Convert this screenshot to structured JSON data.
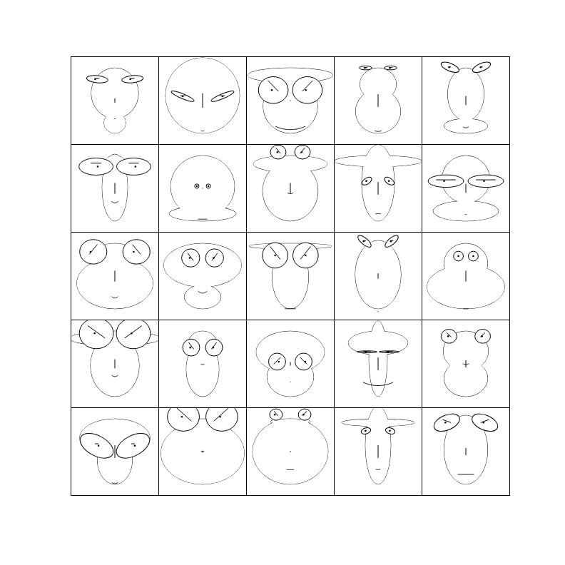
{
  "chart_data": {
    "type": "chernoff_faces",
    "xlim": [
      -1.2,
      1.2
    ],
    "ylim": [
      -1.2,
      1.2
    ],
    "tick_labels": false,
    "faces": [
      [
        0.9,
        0.16,
        -0.49,
        0.65,
        0.3,
        0.12,
        0.5,
        3,
        0.05,
        0.59,
        0.19,
        0.1,
        0.33,
        0.59,
        0.2,
        0.1,
        0,
        0.2
      ],
      [
        0.9,
        0.68,
        0.5,
        0.8,
        1.02,
        0.4,
        0.84,
        5,
        0.1,
        0.12,
        0.21,
        0.4,
        0.2,
        0.68,
        0,
        0.1,
        0,
        0.2
      ],
      [
        0.9,
        0.09,
        0.5,
        1.17,
        0.75,
        0.02,
        0.8,
        0.5,
        0.9,
        0.29,
        0.06,
        0,
        0.9,
        0.82,
        0.1,
        0.15,
        0.2,
        0.35
      ],
      [
        0.9,
        0.3,
        0,
        0.5,
        0.62,
        0.35,
        0.85,
        2,
        0.2,
        0.9,
        0.17,
        0,
        0.3,
        0.35,
        0.1,
        0.1,
        0,
        0.3
      ],
      [
        0.9,
        0.05,
        -0.55,
        0.5,
        0.6,
        0.25,
        0.75,
        4,
        0.2,
        0.92,
        0.17,
        0.4,
        0.4,
        0.53,
        0.1,
        0.05,
        0,
        0.1
      ],
      [
        0.9,
        0.29,
        0.65,
        0.25,
        0.35,
        0.3,
        0.4,
        4,
        0.3,
        0.6,
        0.05,
        0,
        0.5,
        0.94,
        -0.1,
        0.2,
        0,
        0.3
      ],
      [
        0.9,
        0.3,
        -0.8,
        0.88,
        0.92,
        0.02,
        0.85,
        0.01,
        0.25,
        0.06,
        0.1,
        0,
        1,
        0.12,
        0,
        0,
        0,
        0.1
      ],
      [
        0.9,
        0.3,
        0.45,
        1.02,
        0.76,
        0.3,
        0.15,
        4,
        0.2,
        1.0,
        0.12,
        0,
        0.9,
        0.43,
        0.1,
        0.1,
        0.2,
        0.3
      ],
      [
        0.9,
        0.6,
        0.6,
        1.2,
        0.45,
        0.35,
        0.7,
        0.01,
        0.15,
        0.2,
        0.16,
        -0.6,
        0.55,
        0.3,
        0.1,
        0.05,
        0,
        0.1
      ],
      [
        0.9,
        0.05,
        -0.4,
        0.66,
        0.9,
        0.25,
        0.72,
        0.01,
        0.05,
        0.2,
        0.06,
        0,
        0.35,
        0.98,
        0.1,
        0.1,
        0,
        0.55
      ],
      [
        0.9,
        0.3,
        0.2,
        0.6,
        1.05,
        0.3,
        0.6,
        4,
        0.25,
        0.67,
        0.22,
        0,
        0.9,
        0.75,
        0.2,
        0.1,
        -0.2,
        0.3
      ],
      [
        0.9,
        0.05,
        -0.3,
        1.07,
        0.5,
        0.0,
        0.47,
        3,
        0.4,
        0.5,
        0.08,
        0,
        1,
        0.5,
        0.1,
        0.05,
        0.2,
        0.3
      ],
      [
        0.9,
        0.1,
        0.75,
        1.14,
        0.5,
        0.0,
        0.9,
        0.01,
        0.3,
        0.57,
        0.07,
        0,
        1,
        0.7,
        0,
        0.1,
        0.25,
        0.4
      ],
      [
        0.9,
        0.68,
        0.3,
        0.4,
        0.63,
        0.15,
        0.98,
        3,
        0.03,
        0.96,
        0.15,
        0.7,
        0.4,
        0.45,
        0.1,
        0.1,
        0,
        0.2
      ],
      [
        0.9,
        0.5,
        -0.2,
        0.6,
        1.07,
        0.3,
        0.9,
        0.01,
        0.15,
        0.55,
        0.07,
        0,
        1,
        0.27,
        0,
        0,
        0,
        0.1
      ],
      [
        0.9,
        0.3,
        0.5,
        1.25,
        0.67,
        0.25,
        0.35,
        4,
        0.25,
        0.84,
        0.04,
        0,
        0.9,
        0.94,
        0.1,
        0.05,
        0.2,
        0.5
      ],
      [
        0.9,
        0.4,
        0.2,
        0.4,
        0.45,
        0.0,
        0.02,
        3,
        0.1,
        0.45,
        0.08,
        0,
        1,
        0.47,
        0.1,
        0.1,
        0.2,
        0.3
      ],
      [
        0.9,
        0.43,
        -0.25,
        0.94,
        0.64,
        0.1,
        0.5,
        0.01,
        0.02,
        0.06,
        0.13,
        0,
        1,
        0.47,
        -0.2,
        0.05,
        -0.2,
        0.4
      ],
      [
        0.9,
        0.93,
        0.25,
        0.82,
        0.25,
        0.35,
        0.6,
        0.5,
        0.9,
        0.33,
        0.03,
        0,
        0.1,
        0.55,
        0.1,
        0.2,
        0.1,
        0.4
      ],
      [
        0.9,
        0.3,
        -0.2,
        0.62,
        0.6,
        0.2,
        0.02,
        3,
        0.2,
        0.76,
        0.25,
        0,
        0.9,
        0.43,
        0.1,
        0.1,
        0.15,
        0.3
      ],
      [
        0.9,
        0.58,
        -0.15,
        0.97,
        0.48,
        0.35,
        0.88,
        3,
        0.2,
        0.16,
        0,
        0.5,
        0.55,
        1.0,
        -0.1,
        0.1,
        0,
        0.1
      ],
      [
        0.9,
        0.22,
        0.6,
        0.6,
        1.15,
        0.05,
        0,
        5,
        0.1,
        0.96,
        0.09,
        0,
        0.9,
        0.88,
        0.1,
        0.1,
        0.25,
        0.5
      ],
      [
        0.9,
        0.15,
        0.75,
        0.55,
        1.04,
        0.03,
        0.5,
        0.01,
        0.2,
        1.02,
        0.22,
        0,
        0.9,
        0.35,
        0.2,
        0.1,
        0.2,
        0.3
      ],
      [
        0.9,
        0.55,
        0.7,
        1.0,
        0.35,
        0.35,
        0.5,
        4,
        0.15,
        0.57,
        0.2,
        -0.3,
        0.6,
        0.27,
        0.1,
        0.1,
        0,
        0.1
      ],
      [
        0.9,
        0.7,
        0.3,
        0.4,
        0.6,
        0.2,
        0.63,
        0.01,
        0.45,
        0.8,
        0.15,
        -0.4,
        0.55,
        0.75,
        0.1,
        0.1,
        0.1,
        0.3
      ]
    ]
  }
}
